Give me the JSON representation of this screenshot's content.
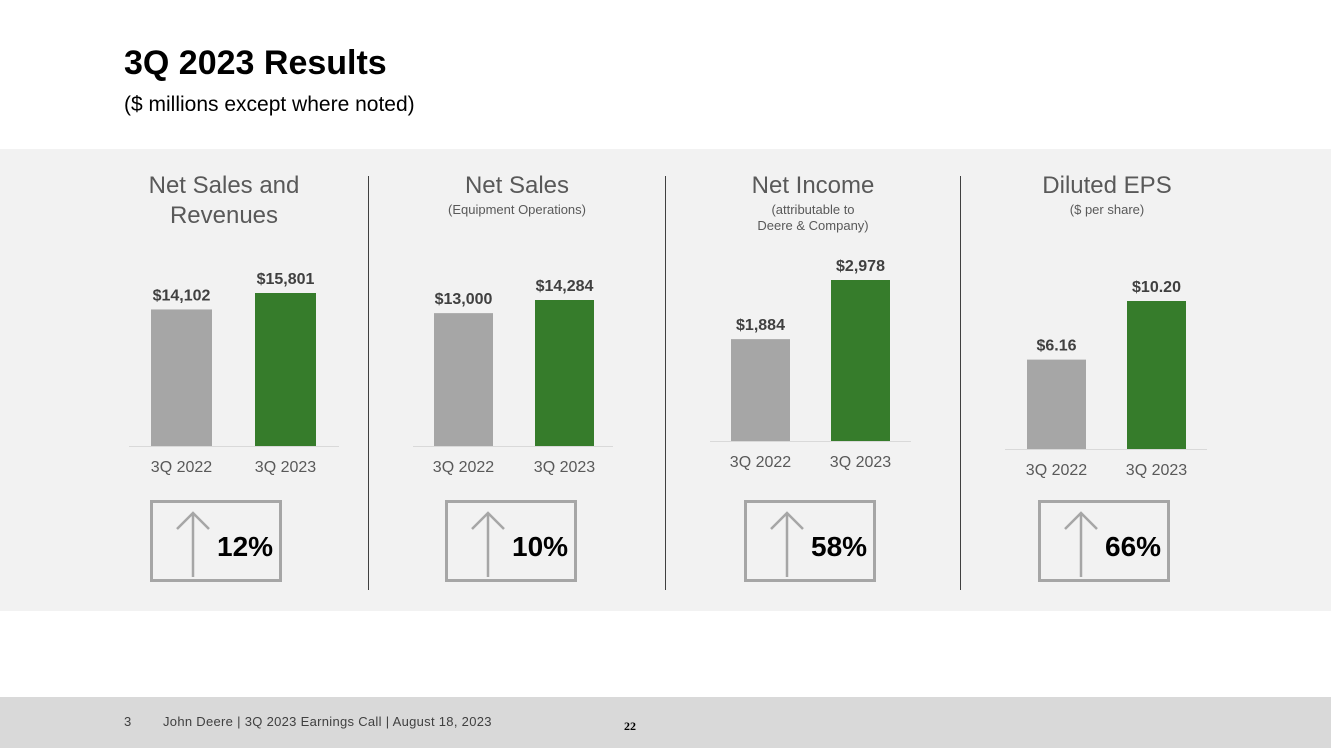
{
  "slide": {
    "title": "3Q 2023 Results",
    "subtitle": "($ millions except where noted)"
  },
  "colors": {
    "prior": "#a6a6a6",
    "current": "#367c2b",
    "band": "#f2f2f2"
  },
  "chart_data": [
    {
      "type": "bar",
      "title": "Net Sales and Revenues",
      "subtitle": "",
      "categories": [
        "3Q 2022",
        "3Q 2023"
      ],
      "values": [
        14102,
        15801
      ],
      "value_labels": [
        "$14,102",
        "$15,801"
      ],
      "ylim": [
        0,
        15801
      ],
      "change": "12%",
      "change_direction": "up"
    },
    {
      "type": "bar",
      "title": "Net Sales",
      "subtitle": "(Equipment Operations)",
      "categories": [
        "3Q 2022",
        "3Q 2023"
      ],
      "values": [
        13000,
        14284
      ],
      "value_labels": [
        "$13,000",
        "$14,284"
      ],
      "ylim": [
        0,
        14284
      ],
      "change": "10%",
      "change_direction": "up"
    },
    {
      "type": "bar",
      "title": "Net Income",
      "subtitle": "(attributable to\nDeere & Company)",
      "categories": [
        "3Q 2022",
        "3Q 2023"
      ],
      "values": [
        1884,
        2978
      ],
      "value_labels": [
        "$1,884",
        "$2,978"
      ],
      "ylim": [
        0,
        2978
      ],
      "change": "58%",
      "change_direction": "up"
    },
    {
      "type": "bar",
      "title": "Diluted EPS",
      "subtitle": "($ per share)",
      "categories": [
        "3Q 2022",
        "3Q 2023"
      ],
      "values": [
        6.16,
        10.2
      ],
      "value_labels": [
        "$6.16",
        "$10.20"
      ],
      "ylim": [
        0,
        10.2
      ],
      "change": "66%",
      "change_direction": "up"
    }
  ],
  "footer": {
    "slide_number": "3",
    "text": "John Deere | 3Q 2023 Earnings Call | August 18, 2023",
    "page": "22"
  }
}
